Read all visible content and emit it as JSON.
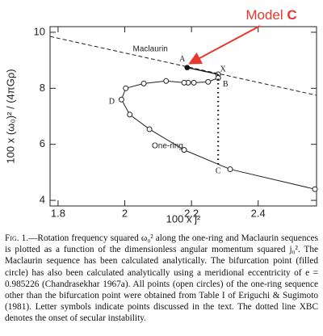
{
  "chart_data": {
    "type": "line",
    "ylabel": "100 x (ω₀)² / (4πGρ)",
    "xlabel": "100 x j²",
    "xlim": [
      1.776,
      2.575
    ],
    "ylim": [
      3.8,
      10.2
    ],
    "xticks": [
      1.8,
      2,
      2.2,
      2.4
    ],
    "yticks": [
      4,
      6,
      8,
      10
    ],
    "series": [
      {
        "name": "Maclaurin",
        "style": "dashed",
        "markers": false,
        "color": "#222222",
        "x": [
          1.776,
          2.575
        ],
        "values": [
          9.85,
          7.75
        ]
      },
      {
        "name": "One-ring",
        "style": "solid",
        "markers": true,
        "color": "#222222",
        "x": [
          2.28,
          2.28,
          2.25,
          2.207,
          2.19,
          2.178,
          2.124,
          2.057,
          2.003,
          1.99,
          2.015,
          2.074,
          2.178,
          2.316,
          2.57
        ],
        "values": [
          8.5,
          8.37,
          8.23,
          8.2,
          8.2,
          8.2,
          8.26,
          8.17,
          8.0,
          7.6,
          7.06,
          6.54,
          5.8,
          5.11,
          4.4
        ]
      }
    ],
    "points": [
      {
        "label": "A",
        "x": 2.187,
        "y": 8.74
      },
      {
        "label": "X",
        "x": 2.28,
        "y": 8.5
      },
      {
        "label": "B",
        "x": 2.28,
        "y": 8.37
      },
      {
        "label": "C",
        "x": 2.28,
        "y": 5.29
      },
      {
        "label": "D",
        "x": 1.99,
        "y": 7.6
      }
    ],
    "annotation": {
      "text": "Model ",
      "emphasis": "C",
      "color": "#e8382c"
    }
  },
  "caption": {
    "label": "Fig. 1.",
    "text": "—Rotation frequency squared ω₀² along the one-ring and Maclaurin sequences is plotted as a function of the dimensionless angular momentum squared j₀². The Maclaurin sequence has been calculated analytically. The bifurcation point (filled circle) has also been calculated analytically using a meridional eccentricity of e = 0.985226 (Chandrasekhar 1967a). All points (open circles) of the one-ring sequence other than the bifurcation point were obtained from Table I of Eriguchi & Sugimoto (1981). Letter symbols indicate points discussed in the text. The dotted line XBC denotes the onset of secular instability."
  }
}
